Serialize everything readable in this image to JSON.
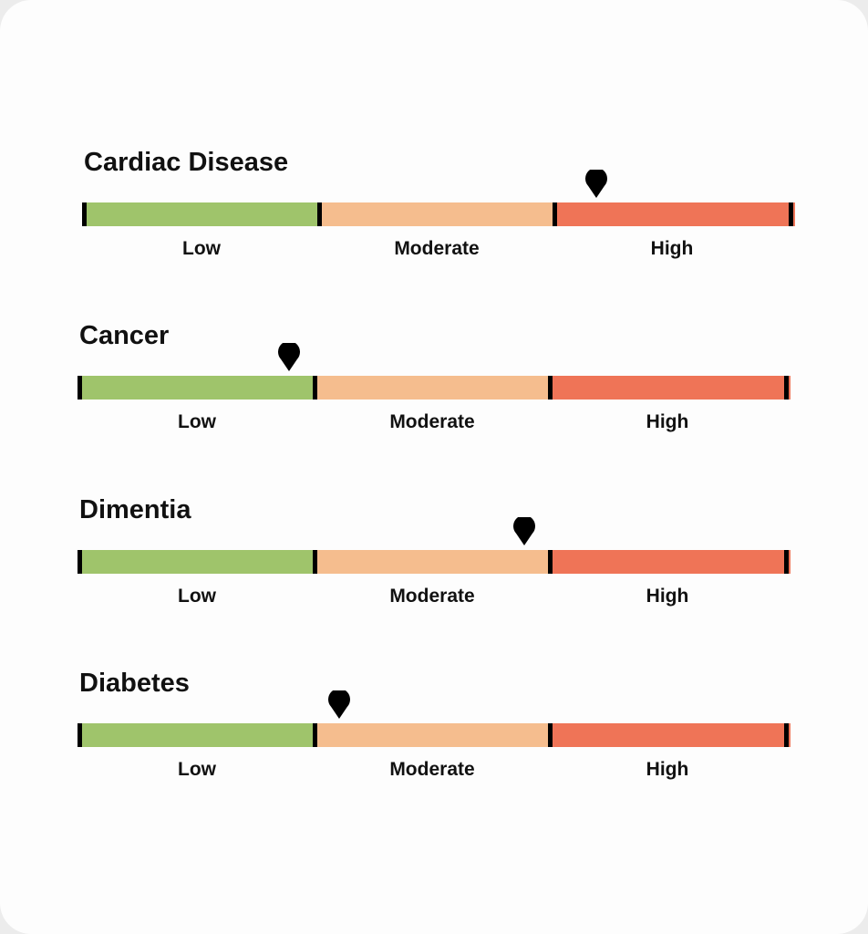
{
  "levels": {
    "low": "Low",
    "moderate": "Moderate",
    "high": "High"
  },
  "colors": {
    "low": "#9fc46b",
    "moderate": "#f5bd8e",
    "high": "#ef7457",
    "marker": "#000000"
  },
  "marker_icon": "map-pin-icon",
  "meters": [
    {
      "title": "Cardiac Disease",
      "level": "High",
      "position": 0.72
    },
    {
      "title": "Cancer",
      "level": "Low",
      "position": 0.295
    },
    {
      "title": "Dimentia",
      "level": "Moderate",
      "position": 0.625
    },
    {
      "title": "Diabetes",
      "level": "Moderate",
      "position": 0.365
    }
  ]
}
